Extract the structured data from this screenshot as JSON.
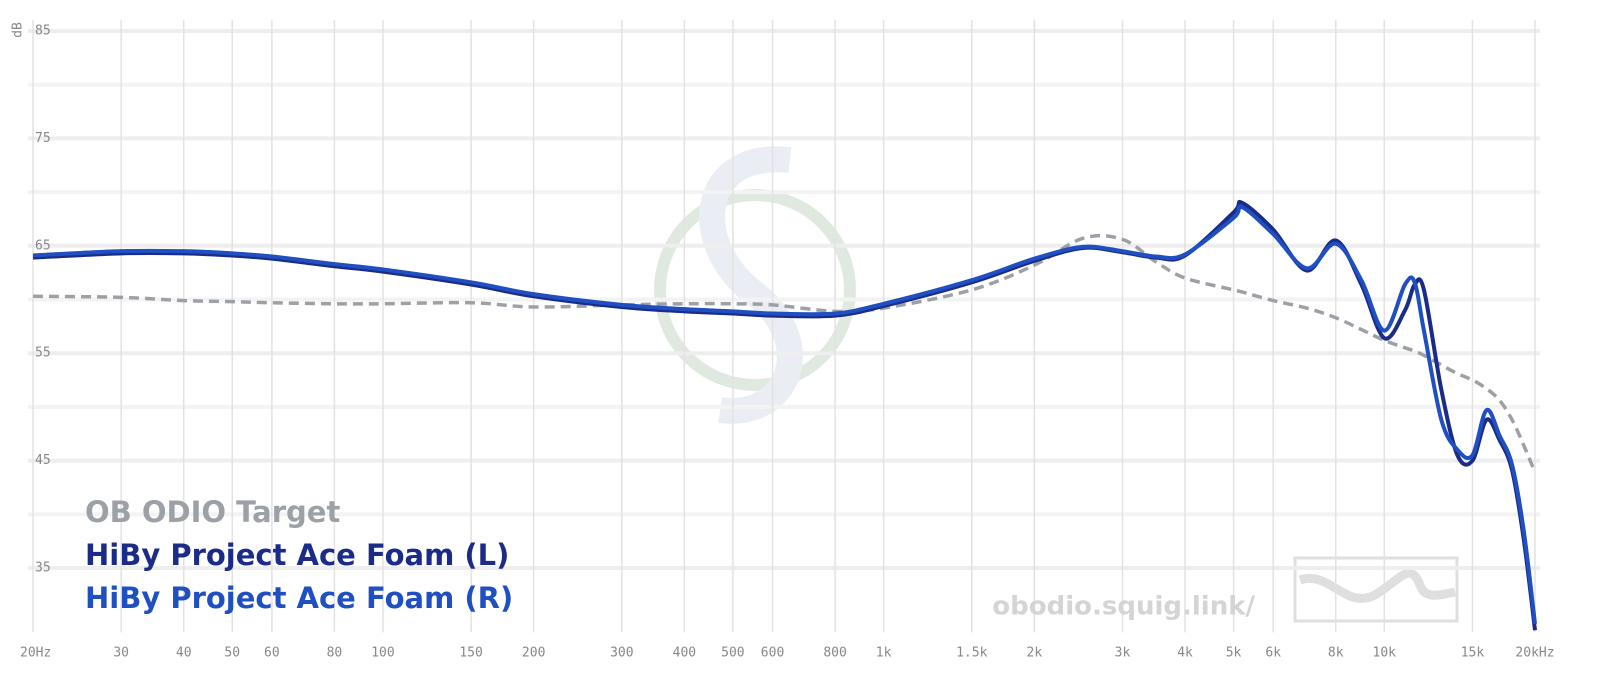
{
  "chart_data": {
    "type": "line",
    "y_label": "dB",
    "xscale": "log",
    "grid": true,
    "watermark": "obodio.squig.link/",
    "xlim": [
      20,
      20000
    ],
    "ylim": [
      29,
      86
    ],
    "yticks": [
      35,
      45,
      55,
      65,
      75,
      85
    ],
    "yminorticks": [
      40,
      50,
      60,
      70,
      80
    ],
    "xticks": [
      {
        "value": 20,
        "label": "20Hz"
      },
      30,
      40,
      50,
      60,
      80,
      100,
      150,
      200,
      300,
      400,
      500,
      600,
      800,
      {
        "value": 1000,
        "label": "1k"
      },
      {
        "value": 1500,
        "label": "1.5k"
      },
      {
        "value": 2000,
        "label": "2k"
      },
      {
        "value": 3000,
        "label": "3k"
      },
      {
        "value": 4000,
        "label": "4k"
      },
      {
        "value": 5000,
        "label": "5k"
      },
      {
        "value": 6000,
        "label": "6k"
      },
      {
        "value": 8000,
        "label": "8k"
      },
      {
        "value": 10000,
        "label": "10k"
      },
      {
        "value": 15000,
        "label": "15k"
      },
      {
        "value": 20000,
        "label": "20kHz"
      }
    ],
    "x": [
      20,
      30,
      40,
      50,
      60,
      80,
      100,
      150,
      200,
      300,
      400,
      500,
      600,
      800,
      1000,
      1500,
      2000,
      2500,
      3000,
      3500,
      4000,
      5000,
      5200,
      6000,
      7000,
      8000,
      9000,
      10000,
      11000,
      11500,
      12000,
      13000,
      14000,
      15000,
      16000,
      17000,
      18000,
      19000,
      20000
    ],
    "series": [
      {
        "name": "OB ODIO Target",
        "color": "#9ca1a8",
        "dashed": true,
        "values": [
          60.3,
          60.2,
          59.9,
          59.8,
          59.7,
          59.6,
          59.6,
          59.7,
          59.3,
          59.5,
          59.6,
          59.6,
          59.5,
          58.9,
          59.2,
          60.9,
          63.2,
          65.7,
          65.6,
          63.5,
          62.0,
          60.9,
          60.7,
          59.9,
          59.2,
          58.3,
          57.2,
          56.2,
          55.5,
          55.2,
          54.8,
          53.9,
          53.1,
          52.5,
          51.7,
          50.6,
          48.8,
          46.4,
          43.9
        ]
      },
      {
        "name": "HiBy Project Ace Foam (L)",
        "color": "#1a2b88",
        "values": [
          63.9,
          64.3,
          64.3,
          64.1,
          63.8,
          63.1,
          62.6,
          61.4,
          60.3,
          59.3,
          58.9,
          58.7,
          58.5,
          58.5,
          59.4,
          61.6,
          63.6,
          64.8,
          64.4,
          63.9,
          64.1,
          68.1,
          69.0,
          66.5,
          62.7,
          65.5,
          61.4,
          56.4,
          59.0,
          61.4,
          60.9,
          51.6,
          45.5,
          45.0,
          48.8,
          46.9,
          44.1,
          37.6,
          29.2
        ]
      },
      {
        "name": "HiBy Project Ace Foam (R)",
        "color": "#1f4fc0",
        "values": [
          64.1,
          64.5,
          64.5,
          64.3,
          64.0,
          63.3,
          62.8,
          61.6,
          60.5,
          59.5,
          59.1,
          58.9,
          58.7,
          58.7,
          59.6,
          61.8,
          63.8,
          64.9,
          64.5,
          64.0,
          64.2,
          67.6,
          68.6,
          66.1,
          62.9,
          65.2,
          61.8,
          57.1,
          61.4,
          61.6,
          57.1,
          48.8,
          46.0,
          45.5,
          49.7,
          47.3,
          44.6,
          38.4,
          29.8
        ]
      }
    ]
  }
}
